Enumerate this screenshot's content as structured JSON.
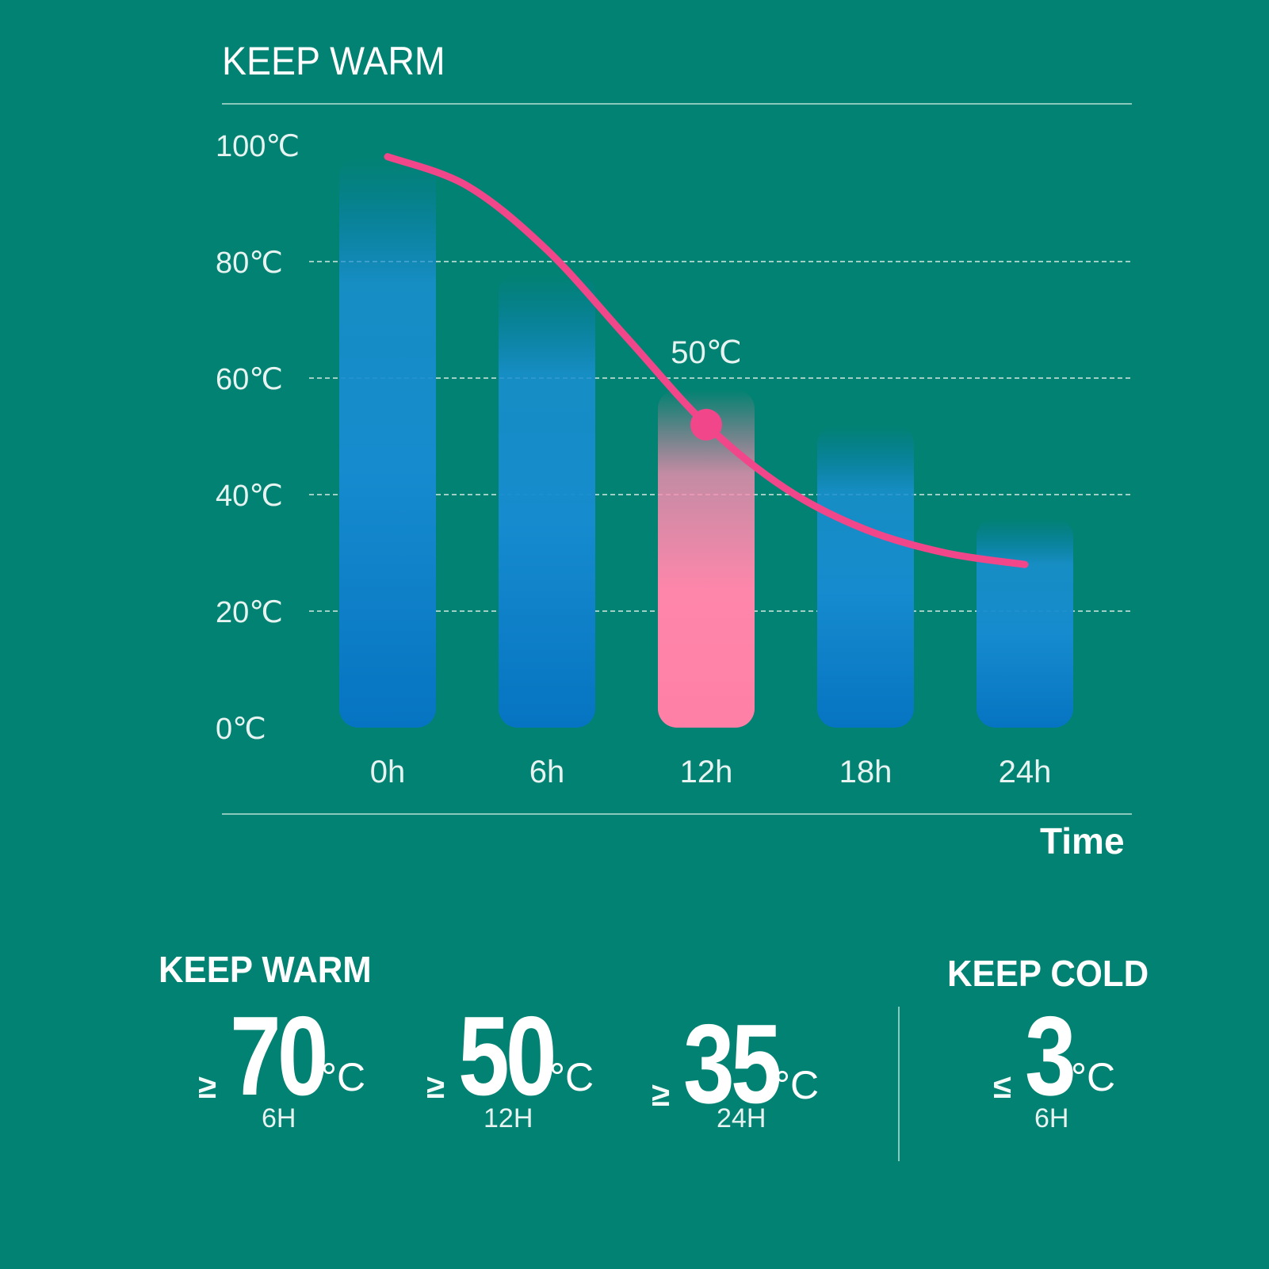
{
  "chart_data": {
    "type": "bar",
    "title": "KEEP WARM",
    "xlabel": "Time",
    "ylabel": "",
    "categories": [
      "0h",
      "6h",
      "12h",
      "18h",
      "24h"
    ],
    "values": [
      98,
      78,
      58,
      52,
      36
    ],
    "highlight_category": "12h",
    "ylim": [
      0,
      100
    ],
    "y_ticks": [
      "0℃",
      "20℃",
      "40℃",
      "60℃",
      "80℃",
      "100℃"
    ],
    "y_tick_values": [
      0,
      20,
      40,
      60,
      80,
      100
    ],
    "grid": true,
    "line": {
      "x": [
        0,
        3,
        6,
        9,
        12,
        15,
        18,
        21,
        24
      ],
      "y": [
        98,
        93,
        82,
        67,
        52,
        41,
        34,
        30,
        28
      ]
    },
    "annotation": {
      "text": "50℃",
      "x": 12,
      "y": 52
    },
    "colors": {
      "background": "#028272",
      "bar": "#0a78c6",
      "bar_highlight": "#ff7fa6",
      "line": "#f2468a",
      "grid": "#9fd0c6"
    }
  },
  "summary": {
    "keep_warm_heading": "KEEP WARM",
    "keep_cold_heading": "KEEP COLD",
    "stats": [
      {
        "comparator": "≥",
        "value": "70",
        "unit": "°C",
        "duration": "6H"
      },
      {
        "comparator": "≥",
        "value": "50",
        "unit": "°C",
        "duration": "12H"
      },
      {
        "comparator": "≥",
        "value": "35",
        "unit": "°C",
        "duration": "24H"
      },
      {
        "comparator": "≤",
        "value": "3",
        "unit": "°C",
        "duration": "6H"
      }
    ]
  }
}
